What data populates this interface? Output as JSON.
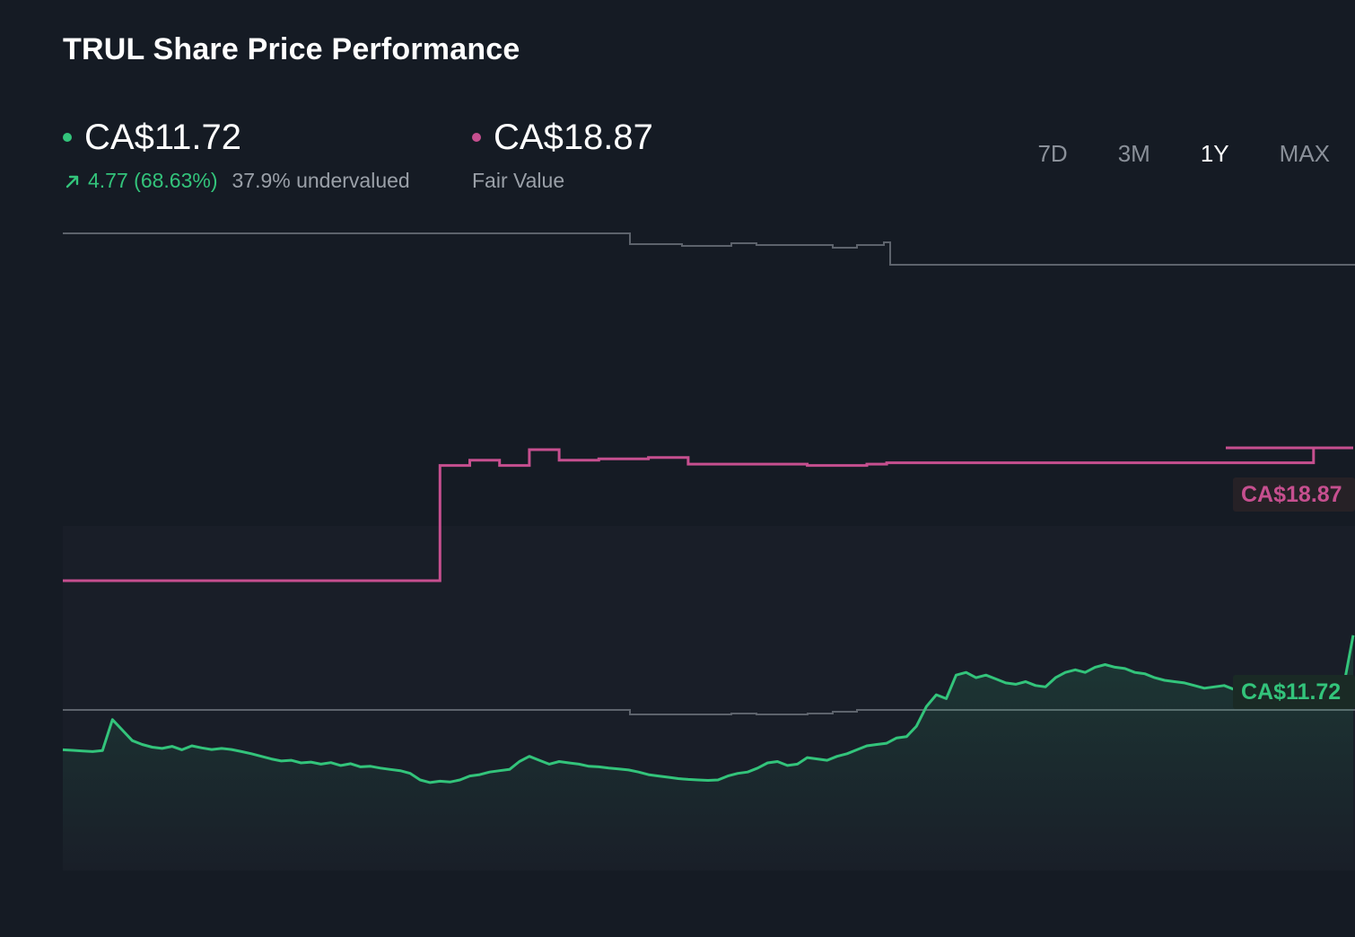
{
  "title": "TRUL Share Price Performance",
  "current_price": {
    "value": "CA$11.72",
    "change": "4.77 (68.63%)",
    "valuation": "37.9% undervalued",
    "color": "#33c47b"
  },
  "fair_value": {
    "value": "CA$18.87",
    "label": "Fair Value",
    "color": "#c64f8f"
  },
  "range_tabs": [
    {
      "label": "7D",
      "active": false
    },
    {
      "label": "3M",
      "active": false
    },
    {
      "label": "1Y",
      "active": true
    },
    {
      "label": "MAX",
      "active": false
    }
  ],
  "chart_data": {
    "type": "line",
    "title": "TRUL Share Price Performance",
    "grid": false,
    "series": [
      {
        "name": "Share Price",
        "color": "#33c47b",
        "end_label": "CA$11.72",
        "values": [
          7.35,
          7.33,
          7.3,
          7.28,
          7.32,
          8.5,
          8.1,
          7.7,
          7.55,
          7.45,
          7.4,
          7.48,
          7.35,
          7.5,
          7.42,
          7.36,
          7.4,
          7.36,
          7.28,
          7.2,
          7.1,
          7.0,
          6.92,
          6.95,
          6.85,
          6.88,
          6.8,
          6.86,
          6.75,
          6.82,
          6.7,
          6.72,
          6.65,
          6.6,
          6.55,
          6.45,
          6.2,
          6.1,
          6.15,
          6.12,
          6.2,
          6.35,
          6.4,
          6.5,
          6.55,
          6.6,
          6.9,
          7.1,
          6.95,
          6.8,
          6.9,
          6.85,
          6.8,
          6.72,
          6.7,
          6.65,
          6.62,
          6.58,
          6.5,
          6.4,
          6.35,
          6.3,
          6.25,
          6.22,
          6.2,
          6.18,
          6.2,
          6.35,
          6.45,
          6.5,
          6.65,
          6.85,
          6.9,
          6.75,
          6.8,
          7.05,
          7.0,
          6.95,
          7.1,
          7.2,
          7.35,
          7.5,
          7.55,
          7.6,
          7.8,
          7.85,
          8.25,
          9.0,
          9.45,
          9.3,
          10.2,
          10.3,
          10.1,
          10.2,
          10.05,
          9.9,
          9.85,
          9.95,
          9.8,
          9.75,
          10.1,
          10.3,
          10.4,
          10.3,
          10.5,
          10.6,
          10.5,
          10.45,
          10.3,
          10.25,
          10.1,
          10.0,
          9.95,
          9.9,
          9.8,
          9.7,
          9.75,
          9.8,
          9.65,
          9.9,
          9.55,
          9.45,
          9.3,
          9.4,
          9.2,
          9.35,
          9.38,
          9.6,
          9.75,
          9.7,
          11.72
        ]
      },
      {
        "name": "Fair Value",
        "color": "#c64f8f",
        "end_label": "CA$18.87",
        "values": [
          13.8,
          13.8,
          13.8,
          13.8,
          13.8,
          13.8,
          13.8,
          13.8,
          13.8,
          13.8,
          13.8,
          13.8,
          13.8,
          13.8,
          13.8,
          13.8,
          13.8,
          13.8,
          13.8,
          13.8,
          13.8,
          13.8,
          13.8,
          13.8,
          13.8,
          13.8,
          13.8,
          13.8,
          13.8,
          13.8,
          13.8,
          13.8,
          13.8,
          13.8,
          13.8,
          13.8,
          13.8,
          13.8,
          18.2,
          18.2,
          18.2,
          18.4,
          18.4,
          18.4,
          18.2,
          18.2,
          18.2,
          18.8,
          18.8,
          18.8,
          18.4,
          18.4,
          18.4,
          18.4,
          18.45,
          18.45,
          18.45,
          18.45,
          18.45,
          18.5,
          18.5,
          18.5,
          18.5,
          18.25,
          18.25,
          18.25,
          18.25,
          18.25,
          18.25,
          18.25,
          18.25,
          18.25,
          18.25,
          18.25,
          18.25,
          18.2,
          18.2,
          18.2,
          18.2,
          18.2,
          18.2,
          18.25,
          18.25,
          18.3,
          18.3,
          18.3,
          18.3,
          18.3,
          18.3,
          18.3,
          18.3,
          18.3,
          18.3,
          18.3,
          18.3,
          18.3,
          18.3,
          18.3,
          18.3,
          18.3,
          18.3,
          18.3,
          18.3,
          18.3,
          18.3,
          18.3,
          18.3,
          18.3,
          18.3,
          18.3,
          18.3,
          18.3,
          18.3,
          18.3,
          18.3,
          18.3,
          18.3,
          18.3,
          18.3,
          18.3,
          18.3,
          18.3,
          18.3,
          18.3,
          18.3,
          18.3,
          18.87,
          18.87,
          18.87,
          18.87,
          18.87
        ]
      }
    ]
  }
}
